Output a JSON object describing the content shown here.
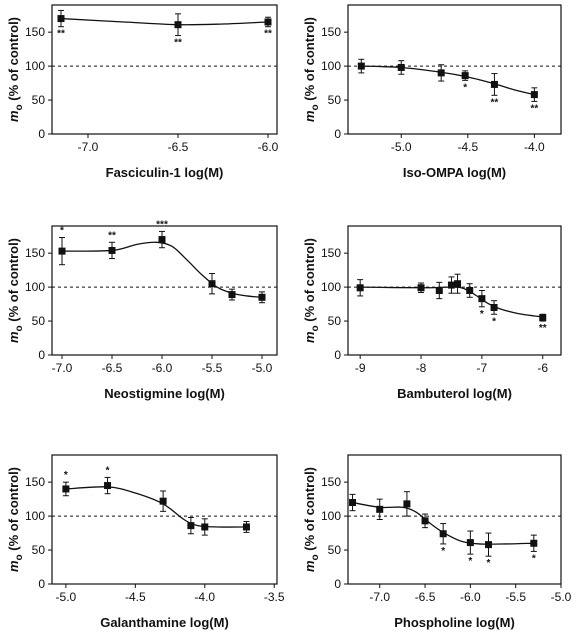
{
  "chart_data": [
    {
      "id": "p1",
      "type": "line",
      "xlabel": "Fasciculin-1 log(M)",
      "ylabel": {
        "main": "m",
        "sub": "o",
        "rest": " (% of control)"
      },
      "xlim": [
        -7.2,
        -5.95
      ],
      "xticks": [
        -7.0,
        -6.5,
        -6.0
      ],
      "xtick_labels": [
        "-7.0",
        "-6.5",
        "-6.0"
      ],
      "ylim": [
        0,
        190
      ],
      "yticks": [
        0,
        50,
        100,
        150
      ],
      "reference_line": 100,
      "points": [
        {
          "x": -7.15,
          "y": 170,
          "err": 12,
          "sig": "**"
        },
        {
          "x": -6.5,
          "y": 161,
          "err": 16,
          "sig": "**"
        },
        {
          "x": -6.0,
          "y": 165,
          "err": 7,
          "sig": "**"
        }
      ],
      "curve": [
        [
          -7.15,
          170
        ],
        [
          -6.8,
          165
        ],
        [
          -6.5,
          161
        ],
        [
          -6.25,
          162
        ],
        [
          -6.0,
          165
        ]
      ]
    },
    {
      "id": "p2",
      "type": "line",
      "xlabel": "Iso-OMPA log(M)",
      "ylabel": {
        "main": "m",
        "sub": "o",
        "rest": " (% of control)"
      },
      "xlim": [
        -5.4,
        -3.8
      ],
      "xticks": [
        -5.0,
        -4.5,
        -4.0
      ],
      "xtick_labels": [
        "-5.0",
        "-4.5",
        "-4.0"
      ],
      "ylim": [
        0,
        190
      ],
      "yticks": [
        0,
        50,
        100,
        150
      ],
      "reference_line": 100,
      "points": [
        {
          "x": -5.3,
          "y": 100,
          "err": 10,
          "sig": ""
        },
        {
          "x": -5.0,
          "y": 98,
          "err": 10,
          "sig": ""
        },
        {
          "x": -4.7,
          "y": 90,
          "err": 12,
          "sig": ""
        },
        {
          "x": -4.52,
          "y": 86,
          "err": 7,
          "sig": "*"
        },
        {
          "x": -4.3,
          "y": 73,
          "err": 16,
          "sig": "**"
        },
        {
          "x": -4.0,
          "y": 58,
          "err": 10,
          "sig": "**"
        }
      ],
      "curve": [
        [
          -5.3,
          100
        ],
        [
          -5.0,
          98
        ],
        [
          -4.7,
          91
        ],
        [
          -4.5,
          84
        ],
        [
          -4.3,
          74
        ],
        [
          -4.15,
          65
        ],
        [
          -4.0,
          58
        ]
      ]
    },
    {
      "id": "p3",
      "type": "line",
      "xlabel": "Neostigmine log(M)",
      "ylabel": {
        "main": "m",
        "sub": "o",
        "rest": " (% of control)"
      },
      "xlim": [
        -7.1,
        -4.85
      ],
      "xticks": [
        -7.0,
        -6.5,
        -6.0,
        -5.5,
        -5.0
      ],
      "xtick_labels": [
        "-7.0",
        "-6.5",
        "-6.0",
        "-5.5",
        "-5.0"
      ],
      "ylim": [
        0,
        190
      ],
      "yticks": [
        0,
        50,
        100,
        150
      ],
      "reference_line": 100,
      "points": [
        {
          "x": -7.0,
          "y": 153,
          "err": 20,
          "sig": "*"
        },
        {
          "x": -6.5,
          "y": 154,
          "err": 12,
          "sig": "**"
        },
        {
          "x": -6.0,
          "y": 170,
          "err": 12,
          "sig": "***"
        },
        {
          "x": -5.5,
          "y": 105,
          "err": 15,
          "sig": ""
        },
        {
          "x": -5.3,
          "y": 89,
          "err": 8,
          "sig": ""
        },
        {
          "x": -5.0,
          "y": 85,
          "err": 8,
          "sig": ""
        }
      ],
      "curve": [
        [
          -7.0,
          153
        ],
        [
          -6.5,
          154
        ],
        [
          -6.25,
          163
        ],
        [
          -6.05,
          166
        ],
        [
          -5.9,
          160
        ],
        [
          -5.75,
          140
        ],
        [
          -5.6,
          118
        ],
        [
          -5.45,
          100
        ],
        [
          -5.3,
          91
        ],
        [
          -5.15,
          87
        ],
        [
          -5.0,
          85
        ]
      ]
    },
    {
      "id": "p4",
      "type": "line",
      "xlabel": "Bambuterol log(M)",
      "ylabel": {
        "main": "m",
        "sub": "o",
        "rest": " (% of control)"
      },
      "xlim": [
        -9.2,
        -5.7
      ],
      "xticks": [
        -9,
        -8,
        -7,
        -6
      ],
      "xtick_labels": [
        "-9",
        "-8",
        "-7",
        "-6"
      ],
      "ylim": [
        0,
        190
      ],
      "yticks": [
        0,
        50,
        100,
        150
      ],
      "reference_line": 100,
      "points": [
        {
          "x": -9.0,
          "y": 99,
          "err": 12,
          "sig": ""
        },
        {
          "x": -8.0,
          "y": 99,
          "err": 7,
          "sig": ""
        },
        {
          "x": -7.7,
          "y": 95,
          "err": 12,
          "sig": ""
        },
        {
          "x": -7.5,
          "y": 103,
          "err": 12,
          "sig": ""
        },
        {
          "x": -7.4,
          "y": 105,
          "err": 14,
          "sig": ""
        },
        {
          "x": -7.2,
          "y": 95,
          "err": 10,
          "sig": ""
        },
        {
          "x": -7.0,
          "y": 83,
          "err": 12,
          "sig": "*"
        },
        {
          "x": -6.8,
          "y": 70,
          "err": 10,
          "sig": "*"
        },
        {
          "x": -6.0,
          "y": 55,
          "err": 5,
          "sig": "**"
        }
      ],
      "curve": [
        [
          -9.0,
          100
        ],
        [
          -8.0,
          99
        ],
        [
          -7.5,
          100
        ],
        [
          -7.3,
          98
        ],
        [
          -7.1,
          88
        ],
        [
          -6.9,
          76
        ],
        [
          -6.7,
          68
        ],
        [
          -6.4,
          61
        ],
        [
          -6.0,
          56
        ]
      ]
    },
    {
      "id": "p5",
      "type": "line",
      "xlabel": "Galanthamine log(M)",
      "ylabel": {
        "main": "m",
        "sub": "o",
        "rest": " (% of control)"
      },
      "xlim": [
        -5.1,
        -3.48
      ],
      "xticks": [
        -5.0,
        -4.5,
        -4.0,
        -3.5
      ],
      "xtick_labels": [
        "-5.0",
        "-4.5",
        "-4.0",
        "-3.5"
      ],
      "ylim": [
        0,
        190
      ],
      "yticks": [
        0,
        50,
        100,
        150
      ],
      "reference_line": 100,
      "points": [
        {
          "x": -5.0,
          "y": 140,
          "err": 10,
          "sig": "*"
        },
        {
          "x": -4.7,
          "y": 145,
          "err": 12,
          "sig": "*"
        },
        {
          "x": -4.3,
          "y": 122,
          "err": 15,
          "sig": ""
        },
        {
          "x": -4.1,
          "y": 86,
          "err": 12,
          "sig": ""
        },
        {
          "x": -4.0,
          "y": 84,
          "err": 12,
          "sig": ""
        },
        {
          "x": -3.7,
          "y": 84,
          "err": 8,
          "sig": ""
        }
      ],
      "curve": [
        [
          -5.0,
          140
        ],
        [
          -4.7,
          143
        ],
        [
          -4.5,
          134
        ],
        [
          -4.3,
          118
        ],
        [
          -4.15,
          95
        ],
        [
          -4.05,
          86
        ],
        [
          -3.9,
          84
        ],
        [
          -3.7,
          84
        ]
      ]
    },
    {
      "id": "p6",
      "type": "line",
      "xlabel": "Phospholine log(M)",
      "ylabel": {
        "main": "m",
        "sub": "o",
        "rest": " (% of control)"
      },
      "xlim": [
        -7.35,
        -5.0
      ],
      "xticks": [
        -7.0,
        -6.5,
        -6.0,
        -5.5,
        -5.0
      ],
      "xtick_labels": [
        "-7.0",
        "-6.5",
        "-6.0",
        "-5.5",
        "-5.0"
      ],
      "ylim": [
        0,
        190
      ],
      "yticks": [
        0,
        50,
        100,
        150
      ],
      "reference_line": 100,
      "points": [
        {
          "x": -7.3,
          "y": 120,
          "err": 12,
          "sig": ""
        },
        {
          "x": -7.0,
          "y": 110,
          "err": 15,
          "sig": ""
        },
        {
          "x": -6.7,
          "y": 118,
          "err": 18,
          "sig": ""
        },
        {
          "x": -6.5,
          "y": 93,
          "err": 10,
          "sig": ""
        },
        {
          "x": -6.3,
          "y": 74,
          "err": 15,
          "sig": "*"
        },
        {
          "x": -6.0,
          "y": 61,
          "err": 17,
          "sig": "*"
        },
        {
          "x": -5.8,
          "y": 58,
          "err": 17,
          "sig": "*"
        },
        {
          "x": -5.3,
          "y": 60,
          "err": 12,
          "sig": "*"
        }
      ],
      "curve": [
        [
          -7.3,
          120
        ],
        [
          -7.0,
          113
        ],
        [
          -6.75,
          113
        ],
        [
          -6.6,
          106
        ],
        [
          -6.45,
          90
        ],
        [
          -6.3,
          76
        ],
        [
          -6.1,
          63
        ],
        [
          -5.9,
          59
        ],
        [
          -5.6,
          59
        ],
        [
          -5.3,
          60
        ]
      ]
    }
  ]
}
